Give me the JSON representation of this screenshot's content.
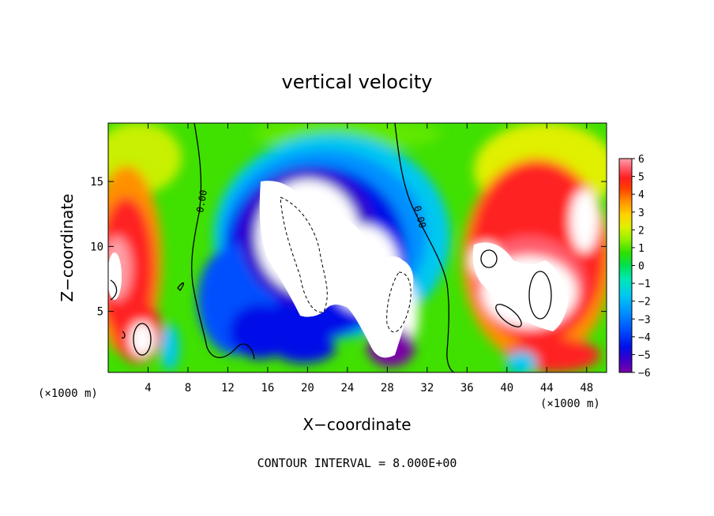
{
  "chart_data": {
    "type": "heatmap",
    "title": "vertical velocity",
    "xlabel": "X−coordinate",
    "ylabel": "Z−coordinate",
    "x_unit_left": "(×1000 m)",
    "x_unit_right": "(×1000 m)",
    "xlim": [
      0,
      50
    ],
    "ylim": [
      0.3,
      19.5
    ],
    "x_ticks": [
      4,
      8,
      12,
      16,
      20,
      24,
      28,
      32,
      36,
      40,
      44,
      48
    ],
    "y_ticks": [
      5,
      10,
      15
    ],
    "colorbar": {
      "range": [
        -6,
        6
      ],
      "labels": [
        "6",
        "5",
        "4",
        "3",
        "2",
        "1",
        "0",
        "−1",
        "−2",
        "−3",
        "−4",
        "−5",
        "−6"
      ],
      "colors": [
        "#7a00a8",
        "#3a00c8",
        "#0010e8",
        "#0050ff",
        "#0090ff",
        "#00c8f0",
        "#00e8b0",
        "#00e050",
        "#30e000",
        "#90f000",
        "#e0f000",
        "#ffd000",
        "#ff9000",
        "#ff4000",
        "#ff2020",
        "#ff6070",
        "#ffa0a8"
      ]
    },
    "contour_labels": [
      {
        "text": "0.00",
        "x": 7.5,
        "y": 13.0,
        "angle": -80
      },
      {
        "text": "0.00",
        "x": 31.2,
        "y": 12.0,
        "angle": 75
      }
    ],
    "footer": "CONTOUR INTERVAL = 8.000E+00"
  }
}
